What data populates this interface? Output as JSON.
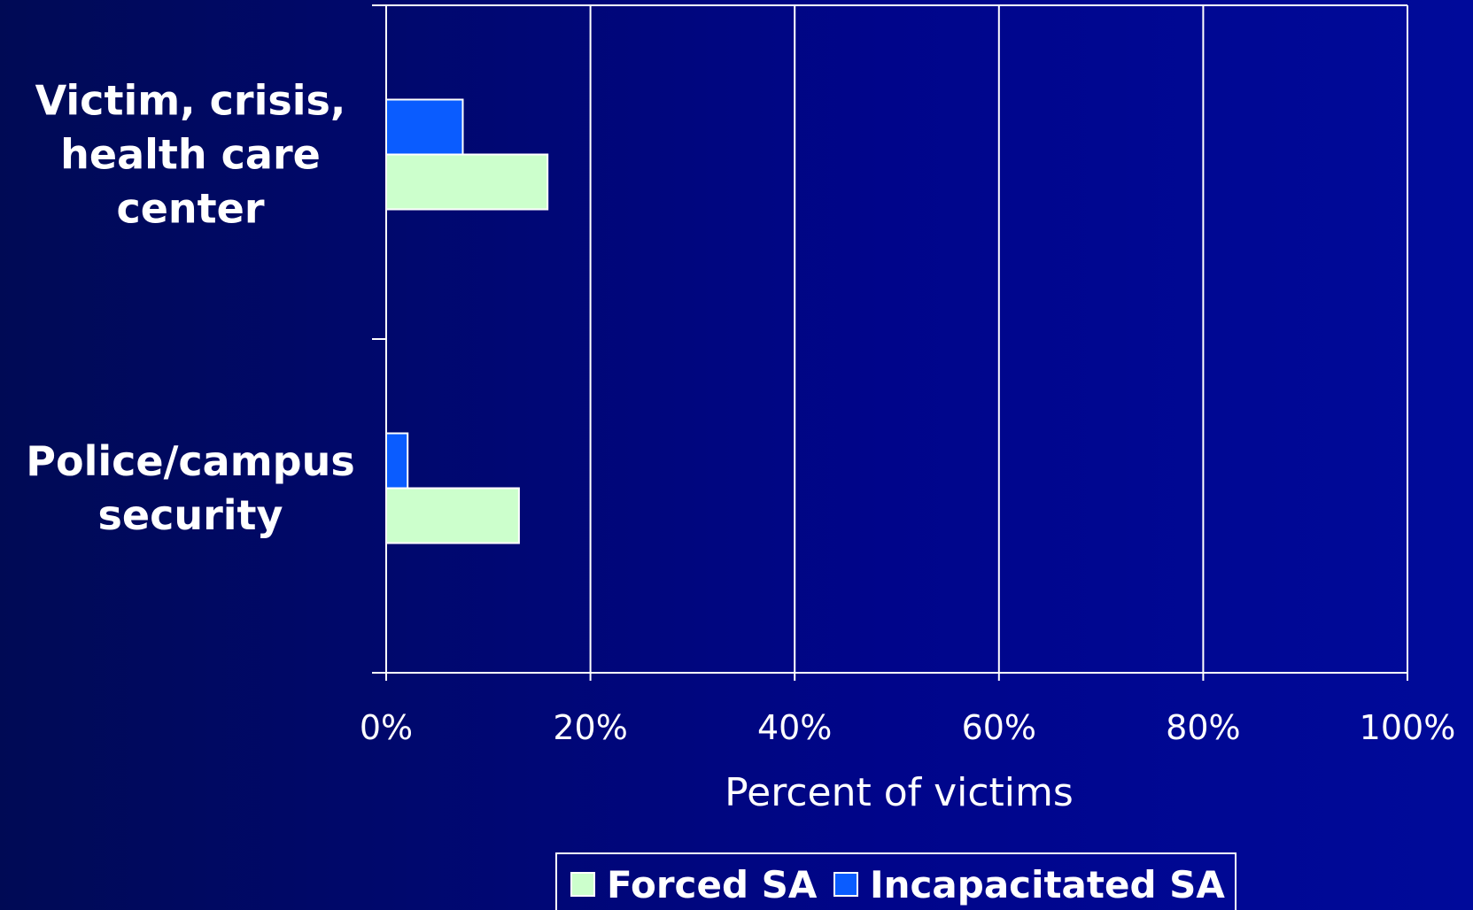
{
  "chart_data": {
    "type": "bar",
    "orientation": "horizontal",
    "categories": [
      [
        "Victim, crisis,",
        "health care",
        "center"
      ],
      [
        "Police/campus",
        "security"
      ]
    ],
    "series": [
      {
        "name": "Incapacitated SA",
        "color": "#0a5cff",
        "values": [
          7.5,
          2.1
        ]
      },
      {
        "name": "Forced SA",
        "color": "#ccffcc",
        "values": [
          15.8,
          13.0
        ]
      }
    ],
    "xlim": [
      0,
      100
    ],
    "x_ticks": [
      "0%",
      "20%",
      "40%",
      "60%",
      "80%",
      "100%"
    ],
    "xlabel": "Percent of victims",
    "ylabel": "",
    "grid": true,
    "legend": {
      "placement": "bottom",
      "entries": [
        {
          "label": "Forced SA",
          "color": "#ccffcc"
        },
        {
          "label": "Incapacitated SA",
          "color": "#0a5cff"
        }
      ]
    }
  }
}
